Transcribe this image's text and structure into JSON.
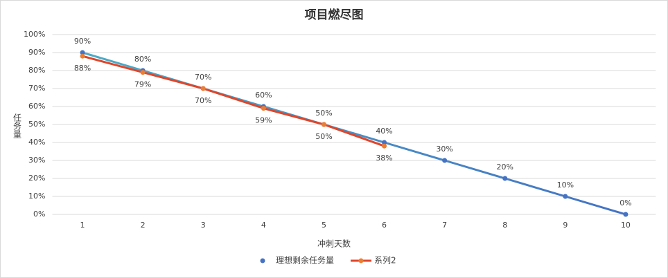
{
  "chart_data": {
    "type": "line",
    "title": "项目燃尽图",
    "x_label": "冲刺天数",
    "y_label": "任务量",
    "categories": [
      1,
      2,
      3,
      4,
      5,
      6,
      7,
      8,
      9,
      10
    ],
    "series": [
      {
        "name": "理想剩余任务量",
        "color": "#4472c4",
        "line_color": "#4bacc6",
        "values": [
          90,
          80,
          70,
          60,
          50,
          40,
          30,
          20,
          10,
          0
        ],
        "value_labels": [
          "90%",
          "80%",
          "70%",
          "60%",
          "50%",
          "40%",
          "30%",
          "20%",
          "10%",
          "0%"
        ]
      },
      {
        "name": "系列2",
        "color": "#ed7d31",
        "line_color": "#e0452a",
        "values": [
          88,
          79,
          70,
          59,
          50,
          38,
          null,
          null,
          null,
          null
        ],
        "value_labels": [
          "88%",
          "79%",
          "70%",
          "59%",
          "50%",
          "38%",
          null,
          null,
          null,
          null
        ]
      }
    ],
    "ylim": [
      0,
      100
    ],
    "yticks": [
      {
        "value": 0,
        "label": "0%"
      },
      {
        "value": 10,
        "label": "10%"
      },
      {
        "value": 20,
        "label": "20%"
      },
      {
        "value": 30,
        "label": "30%"
      },
      {
        "value": 40,
        "label": "40%"
      },
      {
        "value": 50,
        "label": "50%"
      },
      {
        "value": 60,
        "label": "60%"
      },
      {
        "value": 70,
        "label": "70%"
      },
      {
        "value": 80,
        "label": "80%"
      },
      {
        "value": 90,
        "label": "90%"
      },
      {
        "value": 100,
        "label": "100%"
      }
    ],
    "grid": true,
    "legend": "bottom"
  }
}
